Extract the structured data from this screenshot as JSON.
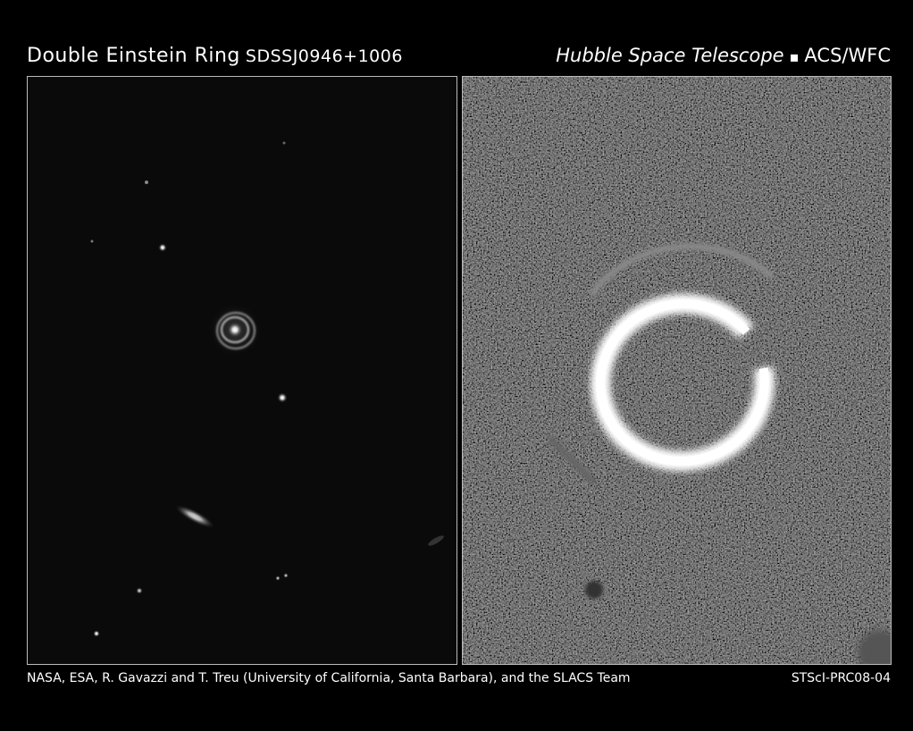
{
  "header": {
    "title": "Double Einstein Ring",
    "object": "SDSSJ0946+1006",
    "telescope": "Hubble Space Telescope",
    "separator": "▪",
    "instrument": "ACS/WFC"
  },
  "footer": {
    "credit": "NASA, ESA, R. Gavazzi and T. Treu (University of California, Santa Barbara), and the SLACS Team",
    "release": "STScI-PRC08-04"
  }
}
